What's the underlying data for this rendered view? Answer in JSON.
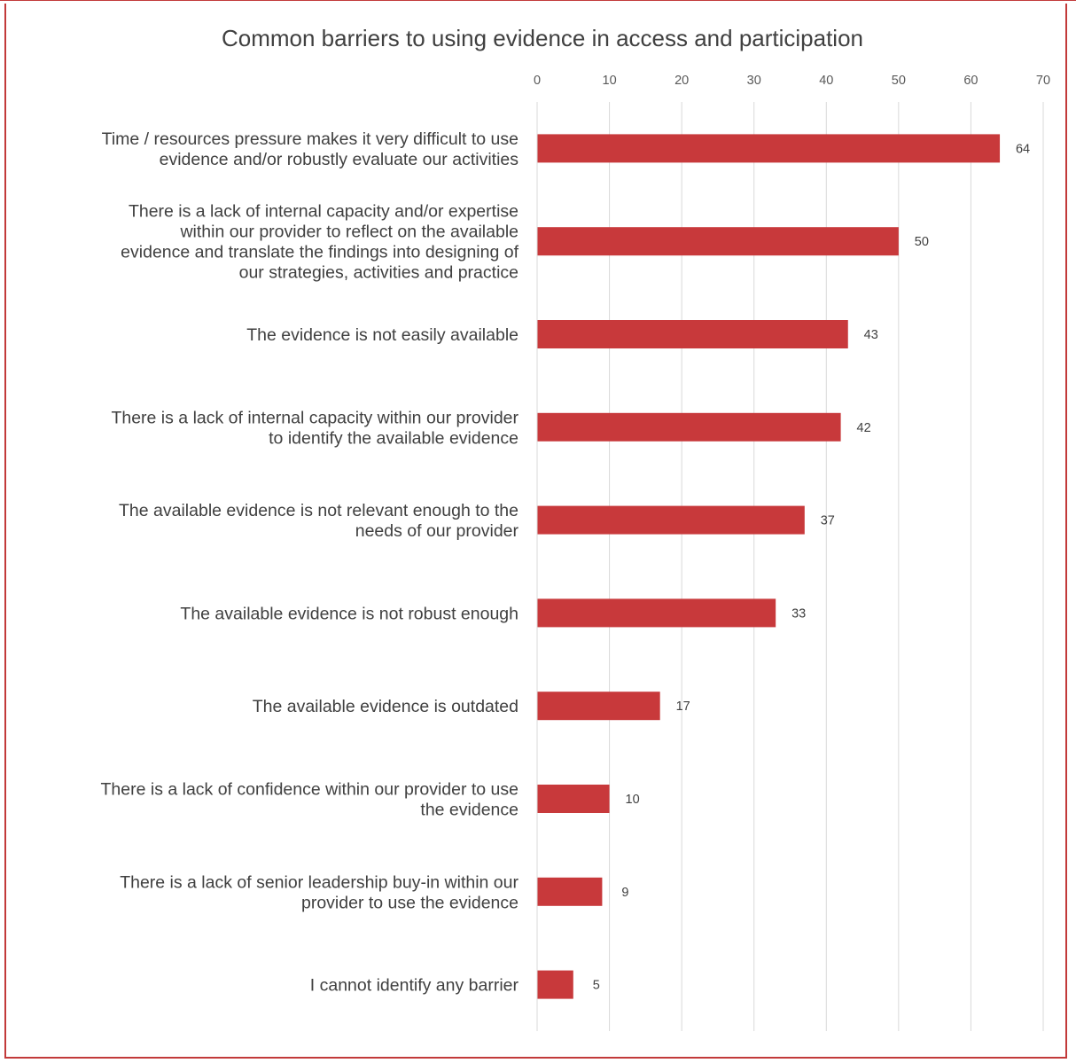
{
  "colors": {
    "bar": "#c8393b",
    "frame": "#c23a3a",
    "grid": "#d9d9d9",
    "text": "#404040"
  },
  "chart_data": {
    "type": "bar",
    "orientation": "horizontal",
    "title": "Common barriers to using evidence in access and participation",
    "xlabel": "",
    "ylabel": "",
    "xlim": [
      0,
      70
    ],
    "x_ticks": [
      0,
      10,
      20,
      30,
      40,
      50,
      60,
      70
    ],
    "x_axis_position": "top",
    "grid": true,
    "legend": "none",
    "categories": [
      [
        "Time / resources pressure makes it very difficult to use",
        "evidence and/or robustly evaluate our activities"
      ],
      [
        "There is a lack of internal capacity and/or expertise",
        "within our provider to reflect on the available",
        "evidence and translate the findings into designing of",
        "our strategies, activities and practice"
      ],
      [
        "The evidence is not easily available"
      ],
      [
        "There is a lack of internal capacity within our provider",
        "to identify the available evidence"
      ],
      [
        "The available evidence is not relevant enough to the",
        "needs of our provider"
      ],
      [
        "The available evidence is not robust enough"
      ],
      [
        "The available evidence is outdated"
      ],
      [
        "There is a lack of confidence within our provider to use",
        "the evidence"
      ],
      [
        "There is a lack of senior leadership buy-in within our",
        "provider to use the evidence"
      ],
      [
        "I cannot identify any barrier"
      ]
    ],
    "values": [
      64,
      50,
      43,
      42,
      37,
      33,
      17,
      10,
      9,
      5
    ]
  }
}
